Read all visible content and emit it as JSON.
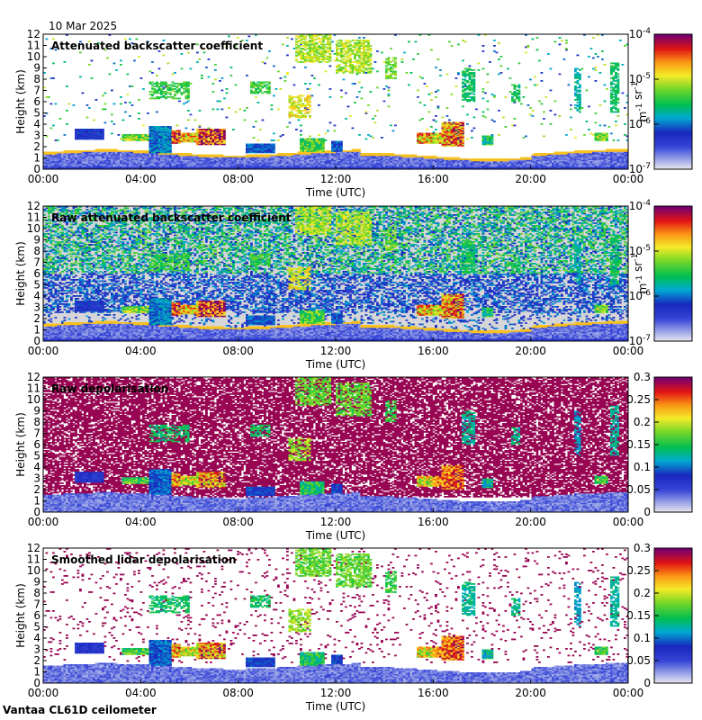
{
  "date_label": "10 Mar 2025",
  "footer": "Vantaa CL61D ceilometer",
  "chart_data": [
    {
      "type": "heatmap",
      "title": "Attenuated backscatter coefficient",
      "xlabel": "Time (UTC)",
      "ylabel": "Height (km)",
      "x_ticks": [
        "00:00",
        "04:00",
        "08:00",
        "12:00",
        "16:00",
        "20:00",
        "00:00"
      ],
      "y_ticks": [
        "0",
        "1",
        "2",
        "3",
        "4",
        "5",
        "6",
        "7",
        "8",
        "9",
        "10",
        "11",
        "12"
      ],
      "ylim": [
        0,
        12
      ],
      "colorbar": {
        "scale": "log",
        "label": "m-1 sr-1",
        "ticks": [
          {
            "b": "10",
            "e": "-7"
          },
          {
            "b": "10",
            "e": "-6"
          },
          {
            "b": "10",
            "e": "-5"
          },
          {
            "b": "10",
            "e": "-4"
          }
        ]
      },
      "field": {
        "style": "beta",
        "noise": 0.03
      }
    },
    {
      "type": "heatmap",
      "title": "Raw attenuated backscatter coefficient",
      "xlabel": "Time (UTC)",
      "ylabel": "Height (km)",
      "x_ticks": [
        "00:00",
        "04:00",
        "08:00",
        "12:00",
        "16:00",
        "20:00",
        "00:00"
      ],
      "y_ticks": [
        "0",
        "1",
        "2",
        "3",
        "4",
        "5",
        "6",
        "7",
        "8",
        "9",
        "10",
        "11",
        "12"
      ],
      "ylim": [
        0,
        12
      ],
      "colorbar": {
        "scale": "log",
        "label": "m-1 sr-1",
        "ticks": [
          {
            "b": "10",
            "e": "-7"
          },
          {
            "b": "10",
            "e": "-6"
          },
          {
            "b": "10",
            "e": "-5"
          },
          {
            "b": "10",
            "e": "-4"
          }
        ]
      },
      "field": {
        "style": "beta_raw",
        "noise": 0.55
      }
    },
    {
      "type": "heatmap",
      "title": "Raw depolarisation",
      "xlabel": "Time (UTC)",
      "ylabel": "Height (km)",
      "x_ticks": [
        "00:00",
        "04:00",
        "08:00",
        "12:00",
        "16:00",
        "20:00",
        "00:00"
      ],
      "y_ticks": [
        "0",
        "1",
        "2",
        "3",
        "4",
        "5",
        "6",
        "7",
        "8",
        "9",
        "10",
        "11",
        "12"
      ],
      "ylim": [
        0,
        12
      ],
      "colorbar": {
        "scale": "linear",
        "ticks": [
          "0",
          "0.05",
          "0.1",
          "0.15",
          "0.2",
          "0.25",
          "0.3"
        ]
      },
      "field": {
        "style": "depol_raw",
        "noise": 0.75
      }
    },
    {
      "type": "heatmap",
      "title": "Smoothed lidar depolarisation",
      "xlabel": "Time (UTC)",
      "ylabel": "Height (km)",
      "x_ticks": [
        "00:00",
        "04:00",
        "08:00",
        "12:00",
        "16:00",
        "20:00",
        "00:00"
      ],
      "y_ticks": [
        "0",
        "1",
        "2",
        "3",
        "4",
        "5",
        "6",
        "7",
        "8",
        "9",
        "10",
        "11",
        "12"
      ],
      "ylim": [
        0,
        12
      ],
      "colorbar": {
        "scale": "linear",
        "ticks": [
          "0",
          "0.05",
          "0.1",
          "0.15",
          "0.2",
          "0.25",
          "0.3"
        ]
      },
      "field": {
        "style": "depol_smooth",
        "noise": 0.06
      }
    }
  ]
}
